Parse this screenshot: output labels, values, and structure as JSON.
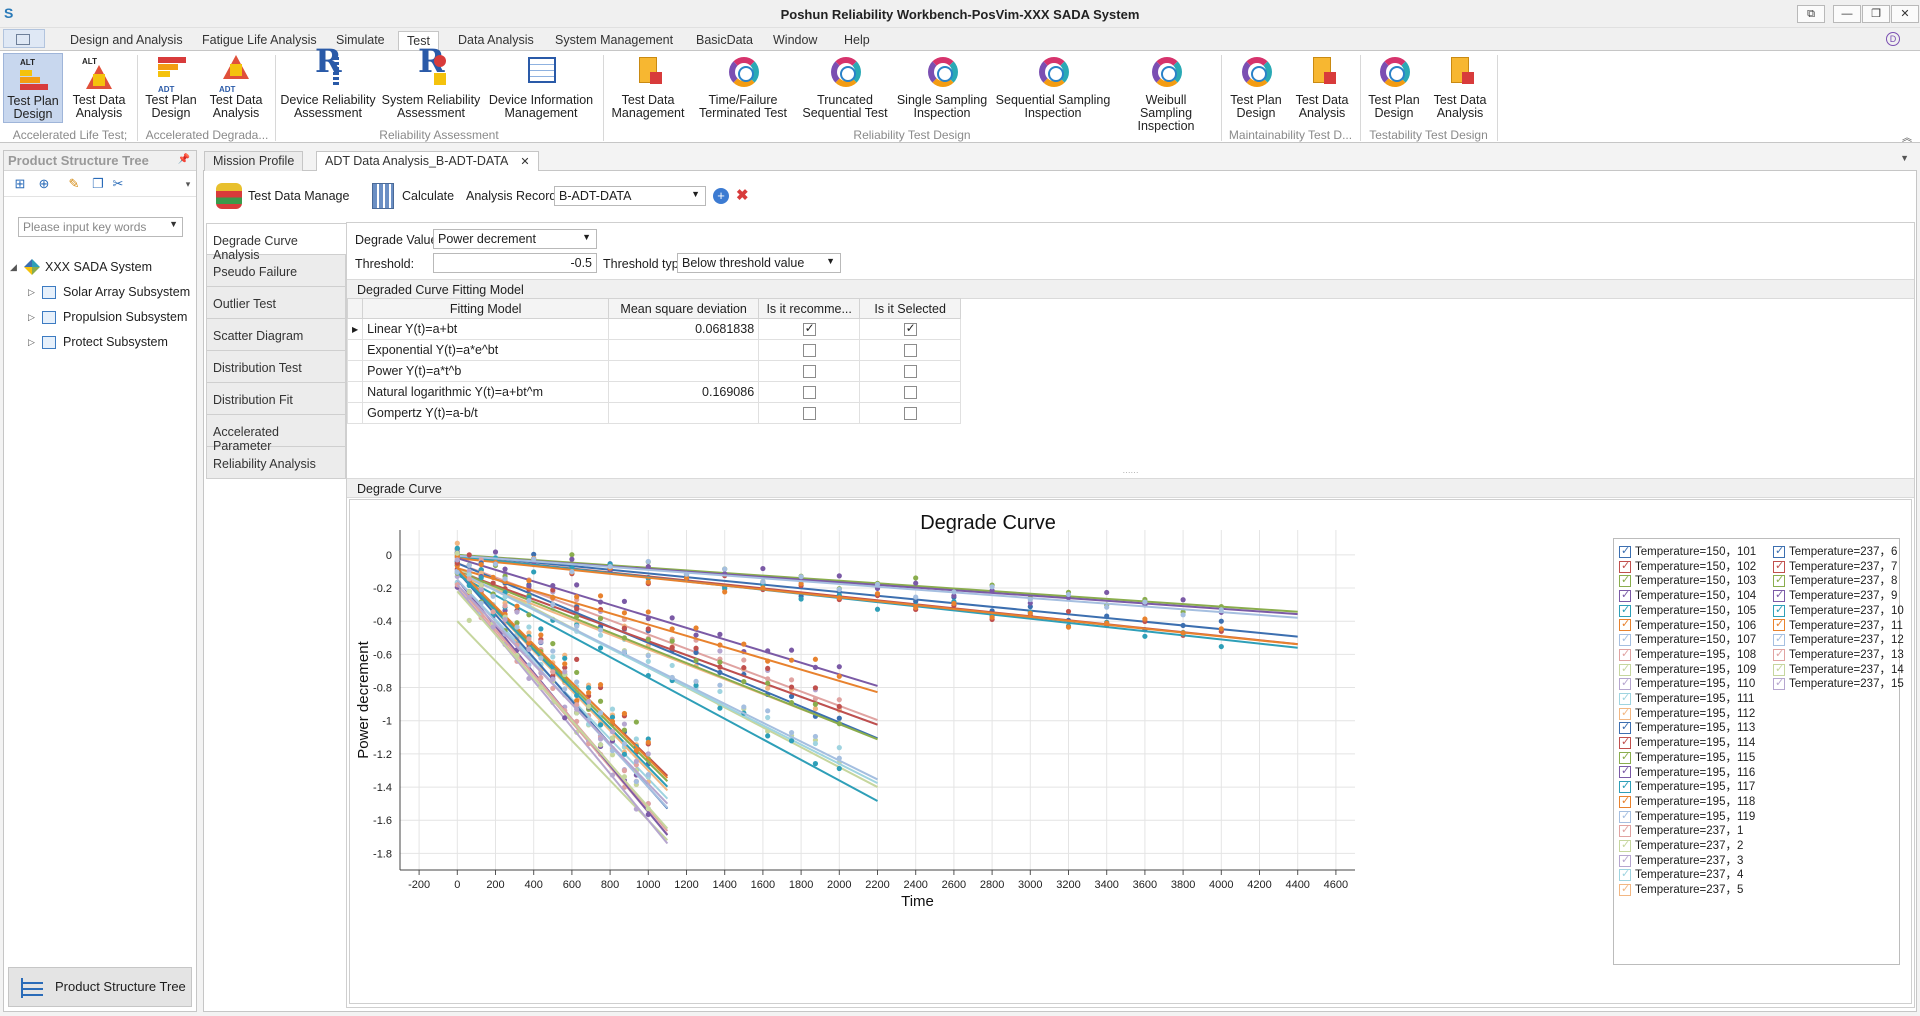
{
  "window": {
    "title": "Poshun Reliability Workbench-PosVim-XXX SADA System",
    "controls": [
      "⧉",
      "—",
      "❐",
      "✕"
    ]
  },
  "menu": {
    "tabs": [
      "Design and Analysis",
      "Fatigue Life Analysis",
      "Simulate",
      "Test",
      "Data Analysis",
      "System Management",
      "BasicData",
      "Window",
      "Help"
    ],
    "active": "Test"
  },
  "ribbon": {
    "buttons": [
      {
        "label1": "Test Plan",
        "label2": "Design",
        "icon": "alt-test-plan-icon",
        "tag": "ALT"
      },
      {
        "label1": "Test Data",
        "label2": "Analysis",
        "icon": "alt-data-analysis-icon",
        "tag": "ALT"
      },
      {
        "label1": "Test Plan",
        "label2": "Design",
        "icon": "adt-test-plan-icon",
        "tag": "ADT"
      },
      {
        "label1": "Test Data",
        "label2": "Analysis",
        "icon": "adt-data-analysis-icon",
        "tag": "ADT"
      },
      {
        "label1": "Device Reliability",
        "label2": "Assessment",
        "icon": "device-reliability-icon",
        "tag": ""
      },
      {
        "label1": "System Reliability",
        "label2": "Assessment",
        "icon": "system-reliability-icon",
        "tag": ""
      },
      {
        "label1": "Device Information",
        "label2": "Management",
        "icon": "device-info-icon",
        "tag": ""
      },
      {
        "label1": "Test Data",
        "label2": "Management",
        "icon": "test-data-management-icon",
        "tag": ""
      },
      {
        "label1": "Time/Failure",
        "label2": "Terminated Test",
        "icon": "terminated-test-icon",
        "tag": ""
      },
      {
        "label1": "Truncated",
        "label2": "Sequential Test",
        "icon": "sequential-test-icon",
        "tag": ""
      },
      {
        "label1": "Single Sampling",
        "label2": "Inspection",
        "icon": "single-sampling-icon",
        "tag": ""
      },
      {
        "label1": "Sequential Sampling",
        "label2": "Inspection",
        "icon": "sequential-sampling-icon",
        "tag": ""
      },
      {
        "label1": "Weibull Sampling",
        "label2": "Inspection",
        "icon": "weibull-sampling-icon",
        "tag": ""
      },
      {
        "label1": "Test Plan",
        "label2": "Design",
        "icon": "maint-test-plan-icon",
        "tag": ""
      },
      {
        "label1": "Test Data",
        "label2": "Analysis",
        "icon": "maint-data-analysis-icon",
        "tag": ""
      },
      {
        "label1": "Test Plan",
        "label2": "Design",
        "icon": "testab-test-plan-icon",
        "tag": ""
      },
      {
        "label1": "Test Data",
        "label2": "Analysis",
        "icon": "testab-data-analysis-icon",
        "tag": ""
      }
    ],
    "groups": [
      "Accelerated Life Test;",
      "Accelerated Degrada...",
      "Reliability Assessment",
      "Reliability Test Design",
      "Maintainability Test D...",
      "Testability Test Design"
    ]
  },
  "left_panel": {
    "title": "Product Structure Tree",
    "search_placeholder": "Please input key words",
    "tree": [
      {
        "label": "XXX SADA System",
        "level": 0
      },
      {
        "label": "Solar Array Subsystem",
        "level": 1
      },
      {
        "label": "Propulsion Subsystem",
        "level": 1
      },
      {
        "label": "Protect Subsystem",
        "level": 1
      }
    ],
    "footer": "Product Structure Tree"
  },
  "doc_tabs": [
    "Mission Profile",
    "ADT Data Analysis_B-ADT-DATA"
  ],
  "toolbar": {
    "test_data_manage": "Test Data Manage",
    "calculate": "Calculate",
    "analysis_record_label": "Analysis Record",
    "analysis_record_value": "B-ADT-DATA"
  },
  "side_tabs": [
    "Degrade Curve Analysis",
    "Pseudo Failure",
    "Outlier Test",
    "Scatter Diagram",
    "Distribution Test",
    "Distribution Fit",
    "Accelerated Parameter",
    "Reliability Analysis"
  ],
  "form": {
    "degrade_value_label": "Degrade Value:",
    "degrade_value": "Power decrement",
    "threshold_label": "Threshold:",
    "threshold_value": "-0.5",
    "threshold_type_label": "Threshold type:",
    "threshold_type_value": "Below threshold value"
  },
  "fitting": {
    "section_title": "Degraded Curve Fitting Model",
    "columns": [
      "Fitting Model",
      "Mean square deviation",
      "Is it recomme...",
      "Is it Selected"
    ],
    "rows": [
      {
        "model": "Linear Y(t)=a+bt",
        "msd": "0.0681838",
        "recommended": true,
        "selected": true
      },
      {
        "model": "Exponential Y(t)=a*e^bt",
        "msd": "",
        "recommended": false,
        "selected": false
      },
      {
        "model": "Power Y(t)=a*t^b",
        "msd": "",
        "recommended": false,
        "selected": false
      },
      {
        "model": "Natural logarithmic Y(t)=a+bt^m",
        "msd": "0.169086",
        "recommended": false,
        "selected": false
      },
      {
        "model": "Gompertz Y(t)=a-b/t",
        "msd": "",
        "recommended": false,
        "selected": false
      }
    ]
  },
  "curve_section_title": "Degrade Curve",
  "chart_data": {
    "type": "scatter",
    "title": "Degrade Curve",
    "xlabel": "Time",
    "ylabel": "Power decrement",
    "xlim": [
      -300,
      4700
    ],
    "ylim": [
      -1.9,
      0.15
    ],
    "xticks": [
      -200,
      0,
      200,
      400,
      600,
      800,
      1000,
      1200,
      1400,
      1600,
      1800,
      2000,
      2200,
      2400,
      2600,
      2800,
      3000,
      3200,
      3400,
      3600,
      3800,
      4000,
      4200,
      4400,
      4600
    ],
    "yticks": [
      0,
      -0.2,
      -0.4,
      -0.6,
      -0.8,
      -1,
      -1.2,
      -1.4,
      -1.6,
      -1.8
    ],
    "grid": true,
    "legend_position": "right",
    "series": [
      {
        "name": "Temperature=150，101",
        "color": "#3c6fb0",
        "xmax": 4400,
        "a": 0.0,
        "b": -0.000112
      },
      {
        "name": "Temperature=150，102",
        "color": "#c0504d",
        "xmax": 4400,
        "a": -0.01,
        "b": -0.00012
      },
      {
        "name": "Temperature=150，103",
        "color": "#8aad4d",
        "xmax": 4400,
        "a": 0.0,
        "b": -7.8e-05
      },
      {
        "name": "Temperature=150，104",
        "color": "#7b5aa6",
        "xmax": 4400,
        "a": -0.005,
        "b": -8e-05
      },
      {
        "name": "Temperature=150，105",
        "color": "#2e9fb8",
        "xmax": 4400,
        "a": -0.01,
        "b": -0.000125
      },
      {
        "name": "Temperature=150，106",
        "color": "#e8822e",
        "xmax": 4400,
        "a": -0.02,
        "b": -0.000118
      },
      {
        "name": "Temperature=150，107",
        "color": "#a5bfe0",
        "xmax": 4400,
        "a": -0.005,
        "b": -8.5e-05
      },
      {
        "name": "Temperature=195，108",
        "color": "#e0a3a1",
        "xmax": 2200,
        "a": -0.05,
        "b": -0.00043
      },
      {
        "name": "Temperature=195，109",
        "color": "#c6d69e",
        "xmax": 2200,
        "a": -0.08,
        "b": -0.0006
      },
      {
        "name": "Temperature=195，110",
        "color": "#b6a6cf",
        "xmax": 2200,
        "a": -0.1,
        "b": -0.00042
      },
      {
        "name": "Temperature=195，111",
        "color": "#9fd4e0",
        "xmax": 2200,
        "a": -0.1,
        "b": -0.00058
      },
      {
        "name": "Temperature=195，112",
        "color": "#f2b783",
        "xmax": 2200,
        "a": -0.12,
        "b": -0.00045
      },
      {
        "name": "Temperature=195，113",
        "color": "#3c6fb0",
        "xmax": 2200,
        "a": -0.05,
        "b": -0.00048
      },
      {
        "name": "Temperature=195，114",
        "color": "#c0504d",
        "xmax": 2200,
        "a": -0.1,
        "b": -0.00042
      },
      {
        "name": "Temperature=195，115",
        "color": "#8aad4d",
        "xmax": 2200,
        "a": -0.1,
        "b": -0.00046
      },
      {
        "name": "Temperature=195，116",
        "color": "#7b5aa6",
        "xmax": 2200,
        "a": -0.02,
        "b": -0.00035
      },
      {
        "name": "Temperature=195，117",
        "color": "#2e9fb8",
        "xmax": 2200,
        "a": -0.12,
        "b": -0.00062
      },
      {
        "name": "Temperature=195，118",
        "color": "#e8822e",
        "xmax": 2200,
        "a": -0.08,
        "b": -0.00034
      },
      {
        "name": "Temperature=195，119",
        "color": "#a5bfe0",
        "xmax": 2200,
        "a": -0.1,
        "b": -0.00057
      },
      {
        "name": "Temperature=237，1",
        "color": "#e0a3a1",
        "xmax": 1100,
        "a": -0.2,
        "b": -0.00135
      },
      {
        "name": "Temperature=237，2",
        "color": "#c6d69e",
        "xmax": 1100,
        "a": -0.4,
        "b": -0.0012
      },
      {
        "name": "Temperature=237，3",
        "color": "#b6a6cf",
        "xmax": 1100,
        "a": -0.2,
        "b": -0.0014
      },
      {
        "name": "Temperature=237，4",
        "color": "#9fd4e0",
        "xmax": 1100,
        "a": -0.15,
        "b": -0.0012
      },
      {
        "name": "Temperature=237，5",
        "color": "#f2b783",
        "xmax": 1100,
        "a": -0.1,
        "b": -0.0012
      },
      {
        "name": "Temperature=237，6",
        "color": "#3c6fb0",
        "xmax": 1100,
        "a": -0.1,
        "b": -0.0013
      },
      {
        "name": "Temperature=237，7",
        "color": "#c0504d",
        "xmax": 1100,
        "a": -0.1,
        "b": -0.00112
      },
      {
        "name": "Temperature=237，8",
        "color": "#8aad4d",
        "xmax": 1100,
        "a": -0.1,
        "b": -0.00115
      },
      {
        "name": "Temperature=237，9",
        "color": "#7b5aa6",
        "xmax": 1100,
        "a": -0.15,
        "b": -0.0014
      },
      {
        "name": "Temperature=237，10",
        "color": "#2e9fb8",
        "xmax": 1100,
        "a": -0.1,
        "b": -0.00118
      },
      {
        "name": "Temperature=237，11",
        "color": "#e8822e",
        "xmax": 1100,
        "a": -0.08,
        "b": -0.00115
      },
      {
        "name": "Temperature=237，12",
        "color": "#a5bfe0",
        "xmax": 1100,
        "a": -0.15,
        "b": -0.00125
      },
      {
        "name": "Temperature=237，13",
        "color": "#e0a3a1",
        "xmax": 1100,
        "a": -0.18,
        "b": -0.00135
      },
      {
        "name": "Temperature=237，14",
        "color": "#c6d69e",
        "xmax": 1100,
        "a": -0.22,
        "b": -0.0013
      },
      {
        "name": "Temperature=237，15",
        "color": "#b6a6cf",
        "xmax": 1100,
        "a": -0.18,
        "b": -0.0012
      }
    ]
  }
}
